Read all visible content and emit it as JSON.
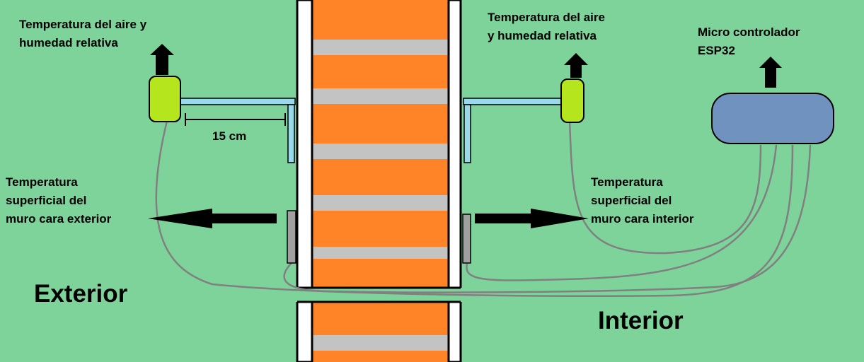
{
  "labels": {
    "ext_sensor_line1": "Temperatura del aire y",
    "ext_sensor_line2": "humedad relativa",
    "int_sensor_line1": "Temperatura del aire",
    "int_sensor_line2": "y humedad relativa",
    "controller_line1": "Micro controlador",
    "controller_line2": "ESP32",
    "distance": "15 cm",
    "ext_surface_line1": "Temperatura",
    "ext_surface_line2": "superficial del",
    "ext_surface_line3": "muro cara exterior",
    "int_surface_line1": "Temperatura",
    "int_surface_line2": "superficial del",
    "int_surface_line3": "muro cara interior",
    "exterior": "Exterior",
    "interior": "Interior"
  },
  "colors": {
    "background": "#7dd39a",
    "brick": "#ff8427",
    "mortar": "#c3c3c3",
    "sensor": "#b5e61d",
    "controller": "#7092be",
    "bracket": "#99d9ea",
    "wire": "#808080",
    "surface_sensor": "#a0a0a0"
  }
}
